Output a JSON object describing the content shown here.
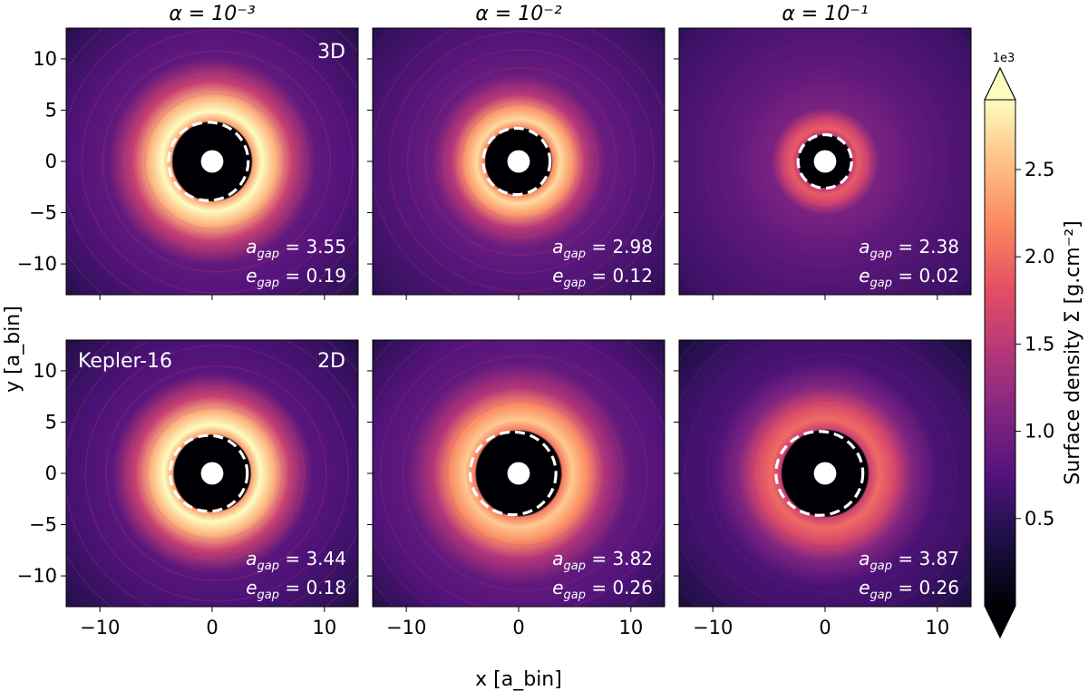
{
  "chart_data": {
    "type": "heatmap",
    "description_kind": "image-grid",
    "column_titles": [
      "α = 10⁻³",
      "α = 10⁻²",
      "α = 10⁻¹"
    ],
    "row_labels": [
      "3D",
      "2D"
    ],
    "system_label": "Kepler-16",
    "xlabel": "x [a_bin]",
    "ylabel": "y [a_bin]",
    "xlim": [
      -13,
      13
    ],
    "ylim": [
      -13,
      13
    ],
    "xticks": [
      -10,
      0,
      10
    ],
    "yticks": [
      -10,
      -5,
      0,
      5,
      10
    ],
    "colorbar": {
      "label": "Surface density Σ [g.cm⁻²]",
      "scale_text": "1e3",
      "range": [
        0,
        2.9
      ],
      "ticks": [
        0.5,
        1.0,
        1.5,
        2.0,
        2.5
      ],
      "colormap": "magma",
      "extend": "both"
    },
    "panels": [
      {
        "row": "3D",
        "alpha": "1e-3",
        "a_gap": 3.55,
        "e_gap": 0.19
      },
      {
        "row": "3D",
        "alpha": "1e-2",
        "a_gap": 2.98,
        "e_gap": 0.12
      },
      {
        "row": "3D",
        "alpha": "1e-1",
        "a_gap": 2.38,
        "e_gap": 0.02
      },
      {
        "row": "2D",
        "alpha": "1e-3",
        "a_gap": 3.44,
        "e_gap": 0.18
      },
      {
        "row": "2D",
        "alpha": "1e-2",
        "a_gap": 3.82,
        "e_gap": 0.26
      },
      {
        "row": "2D",
        "alpha": "1e-1",
        "a_gap": 3.87,
        "e_gap": 0.26
      }
    ]
  }
}
